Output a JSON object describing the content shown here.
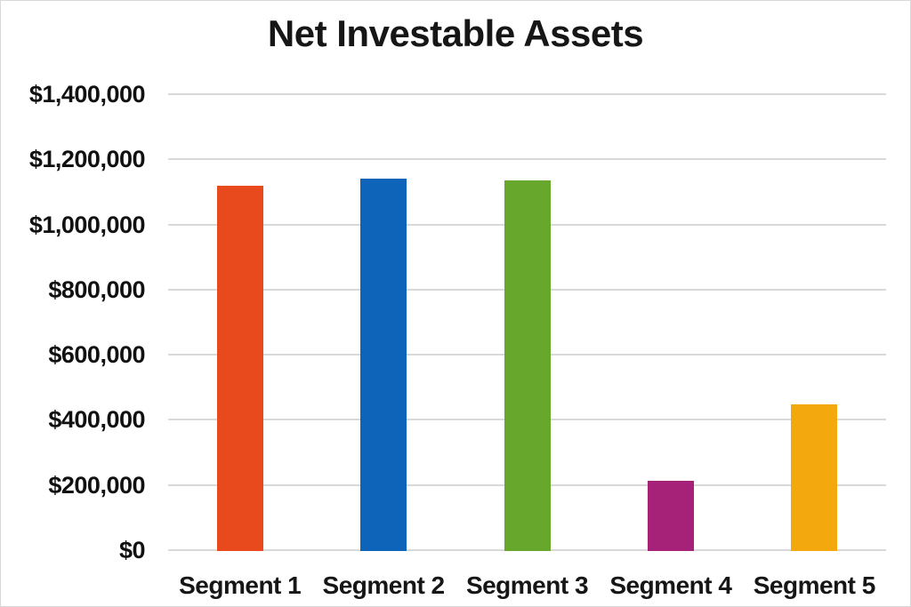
{
  "page": {
    "background": "#ffffff",
    "border_color": "#d8d8d8",
    "text_color": "#161616",
    "gridline_color": "#d9d9d9"
  },
  "chart_data": {
    "type": "bar",
    "title": "Net Investable Assets",
    "xlabel": "",
    "ylabel": "",
    "categories": [
      "Segment 1",
      "Segment 2",
      "Segment 3",
      "Segment 4",
      "Segment 5"
    ],
    "values": [
      1120000,
      1140000,
      1135000,
      213000,
      447000
    ],
    "bar_colors": [
      "#e8491d",
      "#0d64b8",
      "#67a82c",
      "#a62278",
      "#f3a90e"
    ],
    "ylim": [
      0,
      1400000
    ],
    "grid": true,
    "legend_position": "none",
    "y_ticks": [
      {
        "value": 0,
        "label": "$0"
      },
      {
        "value": 200000,
        "label": "$200,000"
      },
      {
        "value": 400000,
        "label": "$400,000"
      },
      {
        "value": 600000,
        "label": "$600,000"
      },
      {
        "value": 800000,
        "label": "$800,000"
      },
      {
        "value": 1000000,
        "label": "$1,000,000"
      },
      {
        "value": 1200000,
        "label": "$1,200,000"
      },
      {
        "value": 1400000,
        "label": "$1,400,000"
      }
    ]
  }
}
